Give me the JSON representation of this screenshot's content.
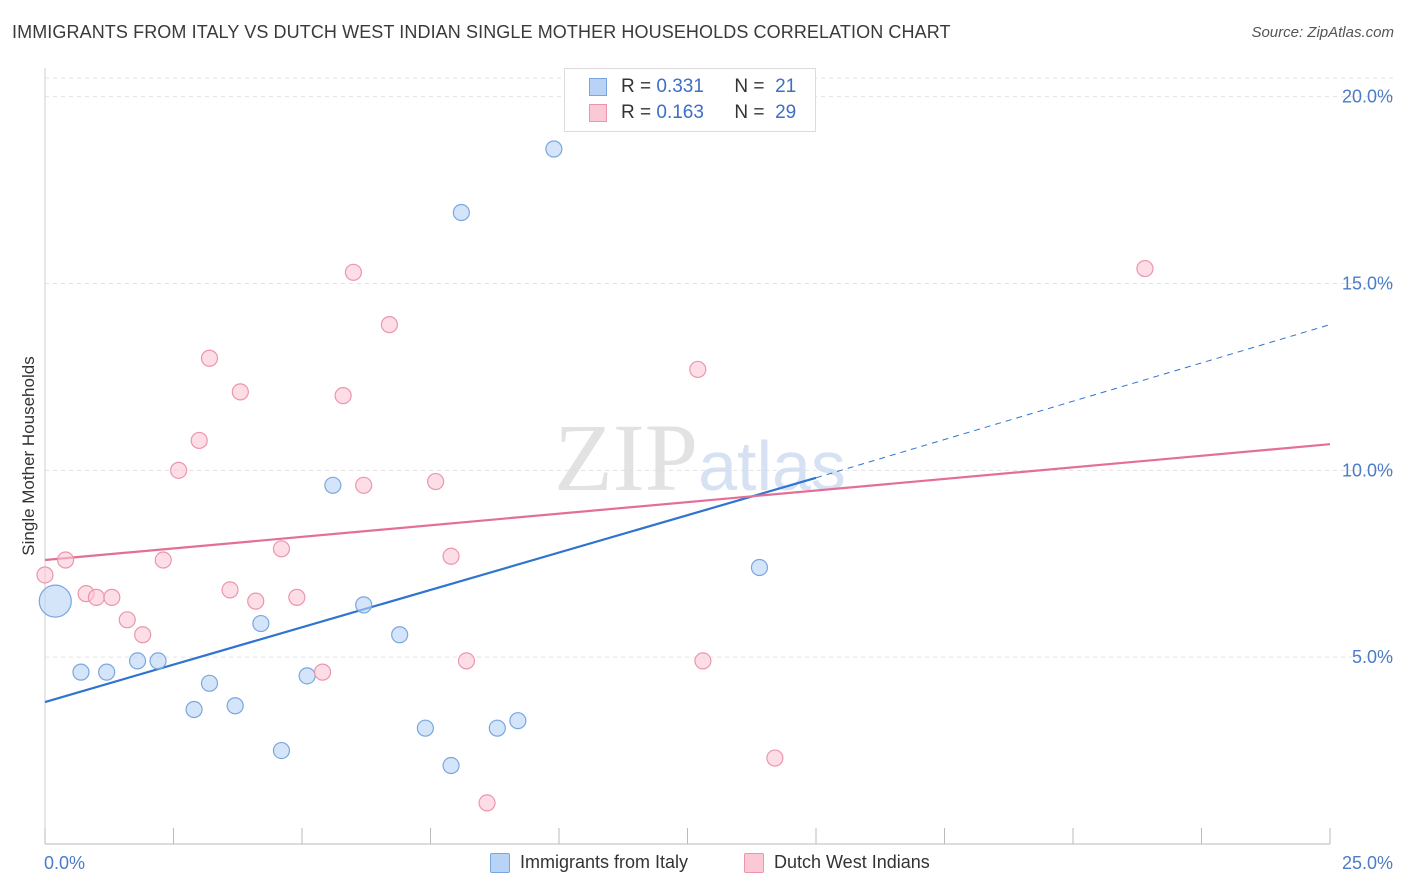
{
  "title": "IMMIGRANTS FROM ITALY VS DUTCH WEST INDIAN SINGLE MOTHER HOUSEHOLDS CORRELATION CHART",
  "source": "Source: ZipAtlas.com",
  "watermark": {
    "part1": "ZIP",
    "part2": "atlas"
  },
  "legend_top": {
    "r_label": "R =",
    "n_label": "N =",
    "rows": [
      {
        "r": "0.331",
        "n": "21",
        "color": "#b8d3f5",
        "border": "#7aa6e0"
      },
      {
        "r": "0.163",
        "n": "29",
        "color": "#fbc8d6",
        "border": "#ec95ad"
      }
    ]
  },
  "chart_data": {
    "type": "scatter",
    "title": "IMMIGRANTS FROM ITALY VS DUTCH WEST INDIAN SINGLE MOTHER HOUSEHOLDS CORRELATION CHART",
    "xlabel": "",
    "ylabel": "Single Mother Households",
    "xlim": [
      0,
      25
    ],
    "ylim": [
      0,
      20.5
    ],
    "x_tick_labels": [
      "0.0%",
      "25.0%"
    ],
    "y_ticks": [
      5,
      10,
      15,
      20
    ],
    "y_tick_labels": [
      "5.0%",
      "10.0%",
      "15.0%",
      "20.0%"
    ],
    "grid": "horizontal dashed",
    "series": [
      {
        "name": "Immigrants from Italy",
        "color": "#b8d3f5",
        "stroke": "#7aa6e0",
        "line_color": "#2f74cf",
        "trend": {
          "x0": 0.0,
          "y0": 3.8,
          "x1": 15.0,
          "y1": 9.8,
          "dash_to_x": 25.0,
          "dash_to_y": 13.9
        },
        "points": [
          {
            "x": 0.2,
            "y": 6.5,
            "big": true
          },
          {
            "x": 0.7,
            "y": 4.6
          },
          {
            "x": 1.2,
            "y": 4.6
          },
          {
            "x": 1.8,
            "y": 4.9
          },
          {
            "x": 2.2,
            "y": 4.9
          },
          {
            "x": 2.9,
            "y": 3.6
          },
          {
            "x": 3.2,
            "y": 4.3
          },
          {
            "x": 3.7,
            "y": 3.7
          },
          {
            "x": 4.6,
            "y": 2.5
          },
          {
            "x": 4.2,
            "y": 5.9
          },
          {
            "x": 5.1,
            "y": 4.5
          },
          {
            "x": 5.6,
            "y": 9.6
          },
          {
            "x": 6.2,
            "y": 6.4
          },
          {
            "x": 6.9,
            "y": 5.6
          },
          {
            "x": 7.4,
            "y": 3.1
          },
          {
            "x": 7.9,
            "y": 2.1
          },
          {
            "x": 8.1,
            "y": 16.9
          },
          {
            "x": 8.8,
            "y": 3.1
          },
          {
            "x": 9.2,
            "y": 3.3
          },
          {
            "x": 9.9,
            "y": 18.6
          },
          {
            "x": 13.9,
            "y": 7.4
          }
        ]
      },
      {
        "name": "Dutch West Indians",
        "color": "#fbc8d6",
        "stroke": "#ec95ad",
        "line_color": "#e46f95",
        "trend": {
          "x0": 0.0,
          "y0": 7.6,
          "x1": 25.0,
          "y1": 10.7
        },
        "points": [
          {
            "x": 0.0,
            "y": 7.2
          },
          {
            "x": 0.4,
            "y": 7.6
          },
          {
            "x": 0.8,
            "y": 6.7
          },
          {
            "x": 1.0,
            "y": 6.6
          },
          {
            "x": 1.3,
            "y": 6.6
          },
          {
            "x": 1.6,
            "y": 6.0
          },
          {
            "x": 1.9,
            "y": 5.6
          },
          {
            "x": 2.3,
            "y": 7.6
          },
          {
            "x": 2.6,
            "y": 10.0
          },
          {
            "x": 3.0,
            "y": 10.8
          },
          {
            "x": 3.2,
            "y": 13.0
          },
          {
            "x": 3.6,
            "y": 6.8
          },
          {
            "x": 3.8,
            "y": 12.1
          },
          {
            "x": 4.1,
            "y": 6.5
          },
          {
            "x": 4.6,
            "y": 7.9
          },
          {
            "x": 4.9,
            "y": 6.6
          },
          {
            "x": 5.4,
            "y": 4.6
          },
          {
            "x": 5.8,
            "y": 12.0
          },
          {
            "x": 6.0,
            "y": 15.3
          },
          {
            "x": 6.2,
            "y": 9.6
          },
          {
            "x": 6.7,
            "y": 13.9
          },
          {
            "x": 7.6,
            "y": 9.7
          },
          {
            "x": 7.9,
            "y": 7.7
          },
          {
            "x": 8.2,
            "y": 4.9
          },
          {
            "x": 8.6,
            "y": 1.1
          },
          {
            "x": 12.7,
            "y": 12.7
          },
          {
            "x": 12.8,
            "y": 4.9
          },
          {
            "x": 14.2,
            "y": 2.3
          },
          {
            "x": 21.4,
            "y": 15.4
          }
        ]
      }
    ]
  }
}
